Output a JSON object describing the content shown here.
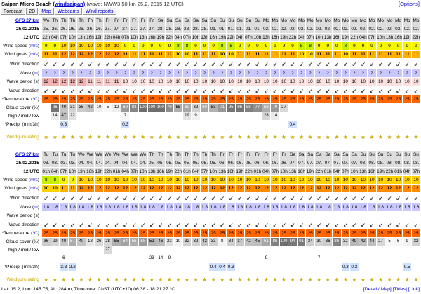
{
  "title": {
    "spot": "Saipan Micro Beach",
    "id": "(windsaipan)",
    "info": "(wave: NWW3 50 km 25.2. 2015 12 UTC)",
    "options": "[Options]"
  },
  "nav": [
    "Forecast",
    "2D",
    "Map",
    "Webcams",
    "Wind reports"
  ],
  "footer": {
    "left": "Lat: 15.2, Lon: 145.75, Alt: 284 m, Timezone: ChST (UTC+10)   06:38 - 18:21   27 °C",
    "right": "[Detail / Map] [Tides] [Link]"
  },
  "tables": [
    {
      "model": "GFS 27 km",
      "date": "25.02.2015",
      "time": "12 UTC",
      "days": [
        "We",
        "Th",
        "Th",
        "Th",
        "Th",
        "Th",
        "Th",
        "Fr",
        "Fr",
        "Fr",
        "Fr",
        "Fr",
        "Fr",
        "Sa",
        "Sa",
        "Sa",
        "Sa",
        "Sa",
        "Sa",
        "Su",
        "Su",
        "Su",
        "Su",
        "Su",
        "Su",
        "Mo",
        "Mo",
        "Mo",
        "Mo",
        "Mo",
        "Mo",
        "Mo",
        "Mo",
        "Mo",
        "Mo",
        "Mo",
        "Mo",
        "Mo",
        "Mo",
        "Mo",
        "Mo",
        "Mo",
        "Mo"
      ],
      "dates": [
        "25.",
        "26.",
        "26.",
        "26.",
        "26.",
        "26.",
        "26.",
        "27.",
        "27.",
        "27.",
        "27.",
        "27.",
        "27.",
        "28.",
        "28.",
        "28.",
        "28.",
        "28.",
        "28.",
        "01.",
        "01.",
        "01.",
        "01.",
        "01.",
        "01.",
        "02.",
        "02.",
        "02.",
        "02.",
        "02.",
        "02.",
        "02.",
        "02.",
        "02.",
        "02.",
        "02.",
        "02.",
        "02.",
        "02.",
        "02.",
        "02.",
        "02.",
        "02."
      ],
      "hours": [
        "22h",
        "04h",
        "07h",
        "10h",
        "13h",
        "16h",
        "19h",
        "22h",
        "04h",
        "07h",
        "10h",
        "13h",
        "16h",
        "19h",
        "22h",
        "04h",
        "07h",
        "10h",
        "13h",
        "16h",
        "19h",
        "22h",
        "04h",
        "07h",
        "10h",
        "13h",
        "16h",
        "19h",
        "22h",
        "04h",
        "07h",
        "10h",
        "13h",
        "16h",
        "19h",
        "22h",
        "04h",
        "07h",
        "10h",
        "13h",
        "16h",
        "19h",
        "22h"
      ],
      "wind_speed": [
        "9",
        "9",
        "10",
        "10",
        "10",
        "10",
        "10",
        "10",
        "10",
        "9",
        "9",
        "9",
        "9",
        "9",
        "9",
        "8",
        "8",
        "9",
        "9",
        "9",
        "8",
        "8",
        "9",
        "9",
        "9",
        "9",
        "9",
        "9",
        "9",
        "8",
        "8",
        "9",
        "9",
        "9",
        "8",
        "9",
        "9",
        "9",
        "9",
        "9",
        "9",
        "9",
        "9"
      ],
      "wind_gusts": [
        "11",
        "11",
        "12",
        "12",
        "12",
        "12",
        "12",
        "12",
        "12",
        "11",
        "11",
        "11",
        "11",
        "11",
        "11",
        "10",
        "10",
        "11",
        "11",
        "11",
        "10",
        "10",
        "11",
        "11",
        "11",
        "11",
        "11",
        "11",
        "11",
        "10",
        "10",
        "11",
        "11",
        "11",
        "10",
        "11",
        "11",
        "11",
        "11",
        "11",
        "11",
        "11",
        "11"
      ],
      "wind_dir": "↙",
      "wave": [
        "2",
        "2",
        "2",
        "2",
        "2",
        "2",
        "2",
        "2",
        "2",
        "2",
        "2",
        "2",
        "2",
        "2",
        "2",
        "2",
        "2",
        "2",
        "2",
        "2",
        "2",
        "2",
        "2",
        "2",
        "2",
        "2",
        "2",
        "2",
        "2",
        "2",
        "2",
        "2",
        "2",
        "2",
        "2",
        "2",
        "2",
        "2",
        "2",
        "2",
        "2",
        "2",
        "2"
      ],
      "wave_period": [
        "12",
        "12",
        "12",
        "12",
        "12",
        "11",
        "11",
        "11",
        "11",
        "10",
        "10",
        "10",
        "10",
        "10",
        "10",
        "10",
        "10",
        "10",
        "10",
        "10",
        "10",
        "10",
        "10",
        "10",
        "10",
        "10",
        "10",
        "10",
        "10",
        "10",
        "10",
        "10",
        "10",
        "10",
        "10",
        "10",
        "10",
        "10",
        "10",
        "10",
        "10",
        "10",
        "10"
      ],
      "wave_dir": "↙",
      "temperature": [
        "25",
        "25",
        "25",
        "25",
        "25",
        "25",
        "25",
        "25",
        "25",
        "25",
        "25",
        "25",
        "25",
        "25",
        "25",
        "25",
        "25",
        "25",
        "25",
        "25",
        "25",
        "25",
        "25",
        "25",
        "25",
        "25",
        "25",
        "25",
        "25",
        "25",
        "25",
        "25",
        "25",
        "25",
        "25",
        "25",
        "25",
        "25",
        "25",
        "25",
        "25",
        "25",
        "25"
      ],
      "cloud_top": [
        "",
        "96",
        "40",
        "31",
        "35",
        "42",
        "10",
        "5",
        "12",
        "69",
        "83",
        "100",
        "100",
        "100",
        "79",
        "55",
        "60",
        "32",
        "60",
        "53",
        "71",
        "95",
        "96",
        "88",
        "77",
        "56",
        "70",
        "27",
        "",
        "",
        "",
        "",
        "",
        "",
        "",
        "",
        "",
        "",
        "",
        "",
        "",
        "",
        ""
      ],
      "cloud_mid": [
        "",
        "14",
        "47",
        "22",
        "",
        "",
        "",
        "",
        "",
        "7",
        "",
        "",
        "",
        "",
        "",
        "",
        "19",
        "9",
        "",
        "",
        "",
        "",
        "",
        "",
        "",
        "28",
        "14",
        "",
        "",
        "",
        "",
        "",
        "",
        "",
        "",
        "",
        "",
        "",
        "",
        "",
        "",
        "",
        ""
      ],
      "precip": [
        "",
        "",
        "0.3",
        "",
        "",
        "",
        "",
        "",
        "",
        "0.3",
        "",
        "",
        "",
        "",
        "",
        "",
        "",
        "",
        "",
        "",
        "",
        "",
        "",
        "",
        "",
        "",
        "",
        "",
        "0.4",
        "",
        "",
        "",
        "",
        "",
        "",
        "",
        "",
        "",
        "",
        "",
        "",
        "",
        ""
      ],
      "rating": "★"
    },
    {
      "model": "GFS 27 km",
      "date": "25.02.2015",
      "time": "12 UTC",
      "days": [
        "Tu",
        "Tu",
        "Tu",
        "Tu",
        "We",
        "We",
        "We",
        "We",
        "We",
        "We",
        "We",
        "We",
        "Th",
        "Th",
        "Th",
        "Th",
        "Th",
        "Th",
        "Th",
        "Th",
        "Fr",
        "Fr",
        "Fr",
        "Fr",
        "Fr",
        "Fr",
        "Fr",
        "Fr",
        "Sa",
        "Sa",
        "Sa",
        "Sa",
        "Sa",
        "Sa",
        "Sa",
        "Sa",
        "Su",
        "Su",
        "Su",
        "Su",
        "Su",
        "Su",
        "Su"
      ],
      "dates": [
        "03.",
        "03.",
        "03.",
        "03.",
        "04.",
        "04.",
        "04.",
        "04.",
        "04.",
        "04.",
        "04.",
        "04.",
        "05.",
        "05.",
        "05.",
        "05.",
        "05.",
        "05.",
        "05.",
        "05.",
        "06.",
        "06.",
        "06.",
        "06.",
        "06.",
        "06.",
        "06.",
        "06.",
        "07.",
        "07.",
        "07.",
        "07.",
        "07.",
        "07.",
        "07.",
        "07.",
        "08.",
        "08.",
        "08.",
        "08.",
        "08.",
        "08.",
        "08."
      ],
      "hours": [
        "01h",
        "04h",
        "07h",
        "10h",
        "13h",
        "16h",
        "19h",
        "22h",
        "01h",
        "04h",
        "07h",
        "10h",
        "13h",
        "16h",
        "19h",
        "22h",
        "01h",
        "04h",
        "07h",
        "10h",
        "13h",
        "16h",
        "19h",
        "22h",
        "01h",
        "04h",
        "07h",
        "10h",
        "13h",
        "16h",
        "19h",
        "22h",
        "01h",
        "04h",
        "07h",
        "10h",
        "13h",
        "16h",
        "19h",
        "22h",
        "01h",
        "04h",
        "07h"
      ],
      "wind_speed": [
        "8",
        "8",
        "9",
        "9",
        "10",
        "10",
        "10",
        "10",
        "10",
        "10",
        "10",
        "10",
        "10",
        "10",
        "10",
        "10",
        "10",
        "10",
        "10",
        "10",
        "10",
        "10",
        "10",
        "10",
        "10",
        "10",
        "10",
        "10",
        "10",
        "10",
        "10",
        "10",
        "10",
        "10",
        "10",
        "10",
        "10",
        "10",
        "10",
        "10",
        "10",
        "10",
        "10"
      ],
      "wind_gusts": [
        "10",
        "10",
        "11",
        "11",
        "12",
        "12",
        "12",
        "12",
        "12",
        "12",
        "12",
        "12",
        "12",
        "12",
        "12",
        "12",
        "12",
        "12",
        "12",
        "12",
        "12",
        "12",
        "12",
        "12",
        "12",
        "12",
        "12",
        "12",
        "12",
        "12",
        "12",
        "12",
        "12",
        "12",
        "12",
        "12",
        "12",
        "12",
        "12",
        "12",
        "12",
        "12",
        "12"
      ],
      "wind_dir": "↙",
      "wave": [
        "1.8",
        "1.8",
        "1.8",
        "1.8",
        "1.8",
        "1.8",
        "1.8",
        "1.8",
        "1.8",
        "1.8",
        "1.8",
        "1.8",
        "1.8",
        "1.8",
        "1.8",
        "1.8",
        "1.8",
        "1.8",
        "1.8",
        "1.8",
        "1.8",
        "1.8",
        "1.8",
        "1.8",
        "1.8",
        "1.8",
        "1.8",
        "1.8",
        "1.8",
        "1.8",
        "1.8",
        "1.8",
        "1.8",
        "1.8",
        "1.8",
        "1.8",
        "1.8",
        "1.8",
        "1.8",
        "1.8",
        "1.8",
        "1.8",
        "1.8"
      ],
      "wave_period": [
        "",
        "",
        "",
        "",
        "",
        "",
        "",
        "",
        "",
        "",
        "",
        "",
        "",
        "",
        "",
        "",
        "",
        "",
        "",
        "",
        "",
        "",
        "",
        "",
        "",
        "",
        "",
        "",
        "",
        "",
        "",
        "",
        "",
        "",
        "",
        "",
        "",
        "",
        "",
        "",
        "",
        "",
        ""
      ],
      "wave_dir": "↙",
      "temperature": [
        "25",
        "25",
        "25",
        "25",
        "25",
        "25",
        "25",
        "25",
        "25",
        "25",
        "25",
        "25",
        "25",
        "25",
        "25",
        "25",
        "25",
        "25",
        "25",
        "25",
        "25",
        "25",
        "25",
        "25",
        "25",
        "25",
        "25",
        "25",
        "25",
        "25",
        "25",
        "25",
        "25",
        "25",
        "25",
        "25",
        "25",
        "25",
        "25",
        "25",
        "25",
        "25",
        "25"
      ],
      "cloud_top": [
        "36",
        "29",
        "40",
        "57",
        "40",
        "18",
        "26",
        "28",
        "55",
        "64",
        "56",
        "68",
        "52",
        "46",
        "23",
        "10",
        "32",
        "32",
        "42",
        "33",
        "8",
        "34",
        "37",
        "42",
        "45",
        "61",
        "86",
        "100",
        "94",
        "91",
        "34",
        "30",
        "36",
        "86",
        "32",
        "49",
        "42",
        "44",
        "27",
        "5",
        "6",
        "9",
        "32"
      ],
      "cloud_mid": [
        "",
        "",
        "",
        "",
        "",
        "",
        "",
        "27",
        "",
        "",
        "",
        "",
        "",
        "",
        "",
        "",
        "",
        "",
        "",
        "",
        "",
        "",
        "",
        "",
        "",
        "",
        "",
        "",
        "",
        "",
        "",
        "",
        "",
        "",
        "",
        "",
        "",
        "",
        "",
        "",
        "",
        "",
        ""
      ],
      "cloud_low": [
        "",
        "",
        "6",
        "",
        "",
        "",
        "",
        "",
        "",
        "",
        "",
        "",
        "23",
        "14",
        "9",
        "",
        "",
        "",
        "",
        "",
        "",
        "",
        "",
        "",
        "",
        "9",
        "",
        "",
        "",
        "",
        "",
        "7",
        "",
        "",
        "",
        "",
        "",
        "",
        "",
        "",
        "",
        "",
        ""
      ],
      "precip": [
        "",
        "",
        "3.3",
        "2.2",
        "",
        "",
        "",
        "",
        "",
        "",
        "",
        "",
        "",
        "",
        "",
        "",
        "",
        "",
        "",
        "0.4",
        "0.4",
        "0.3",
        "",
        "",
        "",
        "",
        "",
        "",
        "",
        "",
        "",
        "",
        "",
        "",
        "0.3",
        "0.3",
        "",
        "",
        "",
        "",
        "",
        "0.5",
        ""
      ],
      "rating": "★"
    }
  ]
}
